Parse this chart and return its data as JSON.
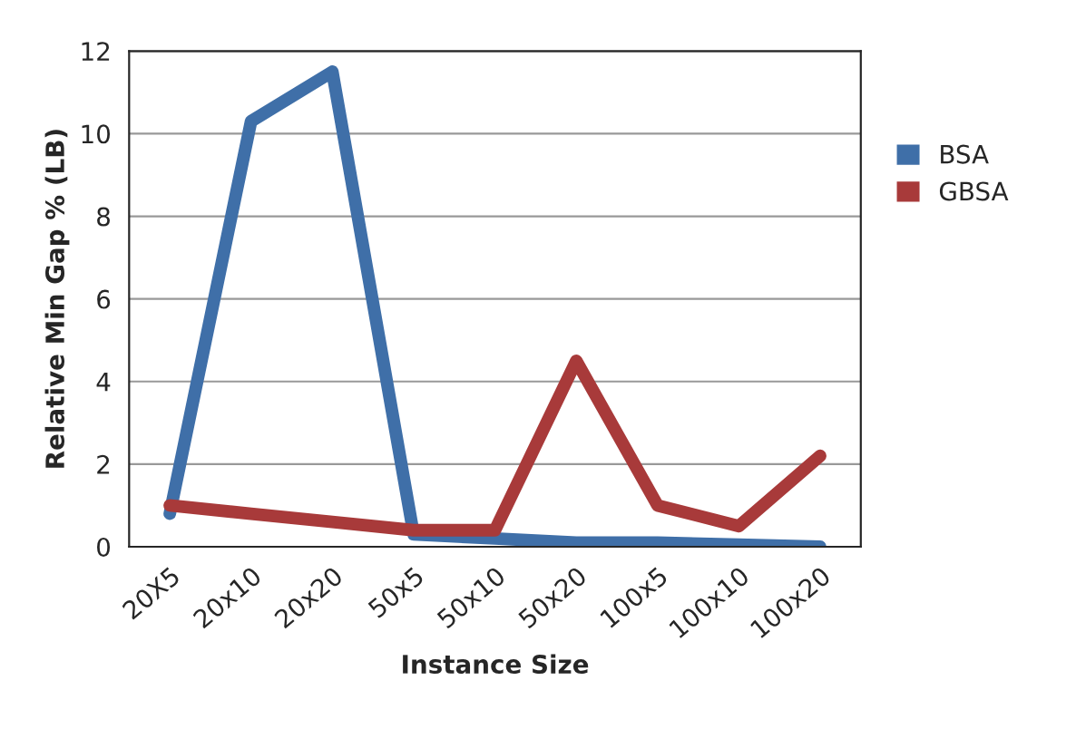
{
  "chart_data": {
    "type": "line",
    "xlabel": "Instance Size",
    "ylabel": "Relative Min Gap % (LB)",
    "categories": [
      "20X5",
      "20x10",
      "20x20",
      "50x5",
      "50x10",
      "50x20",
      "100x5",
      "100x10",
      "100x20"
    ],
    "series": [
      {
        "name": "BSA",
        "color": "#3f6fa8",
        "values": [
          0.8,
          10.3,
          11.5,
          0.3,
          0.2,
          0.1,
          0.1,
          0.05,
          0
        ]
      },
      {
        "name": "GBSA",
        "color": "#a83a3a",
        "values": [
          1.0,
          0.8,
          0.6,
          0.4,
          0.4,
          4.5,
          1.0,
          0.5,
          2.2
        ]
      }
    ],
    "ylim": [
      0,
      12
    ],
    "yticks": [
      0,
      2,
      4,
      6,
      8,
      10,
      12
    ],
    "grid": "y",
    "legend": "right",
    "marker": "none",
    "line_style": "solid"
  }
}
